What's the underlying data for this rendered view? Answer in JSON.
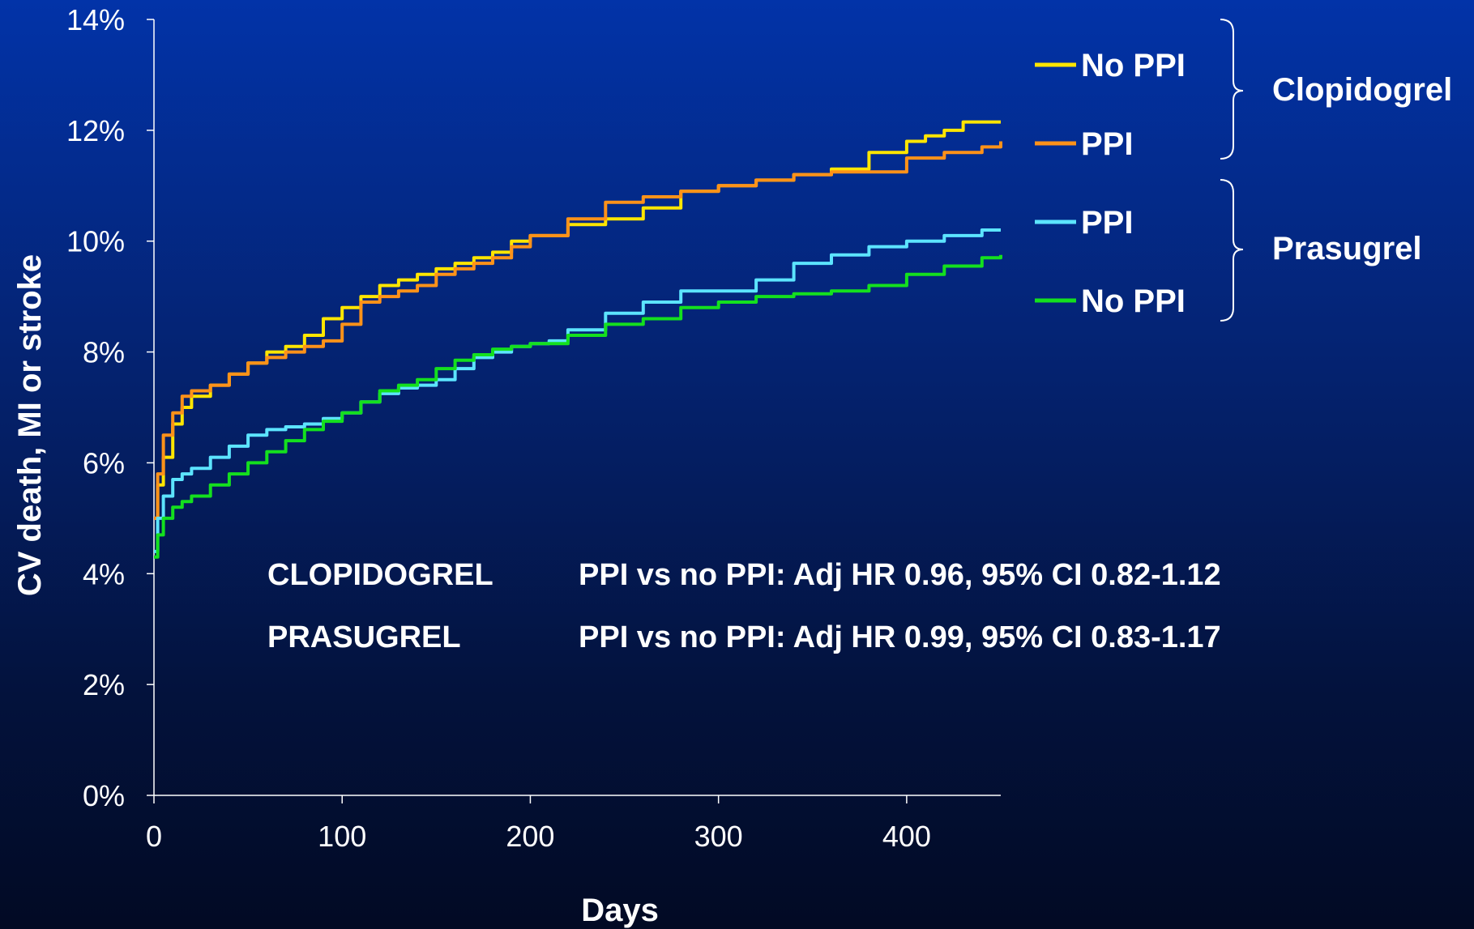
{
  "chart_data": {
    "type": "line",
    "xlabel": "Days",
    "ylabel": "CV death, MI or stroke",
    "xlim": [
      0,
      450
    ],
    "ylim": [
      0,
      14
    ],
    "x_ticks": [
      0,
      100,
      200,
      300,
      400
    ],
    "x_tick_labels": [
      "0",
      "100",
      "200",
      "300",
      "400"
    ],
    "y_ticks": [
      0,
      2,
      4,
      6,
      8,
      10,
      12,
      14
    ],
    "y_tick_labels": [
      "0%",
      "2%",
      "4%",
      "6%",
      "8%",
      "10%",
      "12%",
      "14%"
    ],
    "grid": false,
    "legend_position": "right",
    "series": [
      {
        "name": "No PPI",
        "group": "Clopidogrel",
        "color": "#ffe600",
        "x": [
          0,
          2,
          5,
          10,
          15,
          20,
          30,
          40,
          50,
          60,
          70,
          80,
          90,
          100,
          110,
          120,
          130,
          140,
          150,
          160,
          170,
          180,
          190,
          200,
          220,
          240,
          260,
          280,
          300,
          320,
          340,
          360,
          380,
          400,
          410,
          420,
          430,
          450
        ],
        "y": [
          5.0,
          5.6,
          6.1,
          6.7,
          7.0,
          7.2,
          7.4,
          7.6,
          7.8,
          8.0,
          8.1,
          8.3,
          8.6,
          8.8,
          9.0,
          9.2,
          9.3,
          9.4,
          9.5,
          9.6,
          9.7,
          9.8,
          10.0,
          10.1,
          10.3,
          10.4,
          10.6,
          10.9,
          11.0,
          11.1,
          11.2,
          11.3,
          11.6,
          11.8,
          11.9,
          12.0,
          12.15,
          12.15
        ]
      },
      {
        "name": "PPI",
        "group": "Clopidogrel",
        "color": "#ff9219",
        "x": [
          0,
          2,
          5,
          10,
          15,
          20,
          30,
          40,
          50,
          60,
          70,
          80,
          90,
          100,
          110,
          120,
          130,
          140,
          150,
          160,
          170,
          180,
          190,
          200,
          220,
          240,
          260,
          280,
          300,
          320,
          340,
          360,
          380,
          400,
          420,
          440,
          450
        ],
        "y": [
          5.0,
          5.8,
          6.5,
          6.9,
          7.2,
          7.3,
          7.4,
          7.6,
          7.8,
          7.9,
          8.0,
          8.1,
          8.2,
          8.5,
          8.9,
          9.0,
          9.1,
          9.2,
          9.4,
          9.5,
          9.6,
          9.7,
          9.9,
          10.1,
          10.4,
          10.7,
          10.8,
          10.9,
          11.0,
          11.1,
          11.2,
          11.25,
          11.25,
          11.5,
          11.6,
          11.7,
          11.8
        ]
      },
      {
        "name": "PPI",
        "group": "Prasugrel",
        "color": "#5ce4ff",
        "x": [
          0,
          2,
          5,
          10,
          15,
          20,
          30,
          40,
          50,
          60,
          70,
          80,
          90,
          100,
          110,
          120,
          130,
          140,
          150,
          160,
          170,
          180,
          190,
          200,
          210,
          220,
          240,
          260,
          280,
          300,
          320,
          340,
          360,
          380,
          400,
          420,
          440,
          450
        ],
        "y": [
          4.4,
          5.0,
          5.4,
          5.7,
          5.8,
          5.9,
          6.1,
          6.3,
          6.5,
          6.6,
          6.65,
          6.7,
          6.8,
          6.9,
          7.1,
          7.25,
          7.35,
          7.4,
          7.5,
          7.7,
          7.9,
          8.0,
          8.1,
          8.15,
          8.2,
          8.4,
          8.7,
          8.9,
          9.1,
          9.1,
          9.3,
          9.6,
          9.75,
          9.9,
          10.0,
          10.1,
          10.2,
          10.2
        ]
      },
      {
        "name": "No PPI",
        "group": "Prasugrel",
        "color": "#14e01e",
        "x": [
          0,
          2,
          5,
          10,
          15,
          20,
          30,
          40,
          50,
          60,
          70,
          80,
          90,
          100,
          110,
          120,
          130,
          140,
          150,
          160,
          170,
          180,
          190,
          200,
          220,
          240,
          260,
          280,
          300,
          320,
          340,
          360,
          380,
          400,
          420,
          440,
          450
        ],
        "y": [
          4.3,
          4.7,
          5.0,
          5.2,
          5.3,
          5.4,
          5.6,
          5.8,
          6.0,
          6.2,
          6.4,
          6.6,
          6.75,
          6.9,
          7.1,
          7.3,
          7.4,
          7.5,
          7.7,
          7.85,
          7.95,
          8.05,
          8.1,
          8.15,
          8.3,
          8.5,
          8.6,
          8.8,
          8.9,
          9.0,
          9.05,
          9.1,
          9.2,
          9.4,
          9.55,
          9.7,
          9.75
        ]
      }
    ],
    "legend": [
      {
        "label": "No PPI",
        "color": "#ffe600"
      },
      {
        "label": "PPI",
        "color": "#ff9219"
      },
      {
        "label": "PPI",
        "color": "#5ce4ff"
      },
      {
        "label": "No PPI",
        "color": "#14e01e"
      }
    ],
    "groups": [
      {
        "label": "Clopidogrel"
      },
      {
        "label": "Prasugrel"
      }
    ],
    "annotations": [
      {
        "drug": "CLOPIDOGREL",
        "text": "PPI vs no PPI: Adj HR 0.96, 95% CI 0.82-1.12"
      },
      {
        "drug": "PRASUGREL",
        "text": "PPI vs no PPI: Adj HR 0.99, 95% CI 0.83-1.17"
      }
    ]
  }
}
